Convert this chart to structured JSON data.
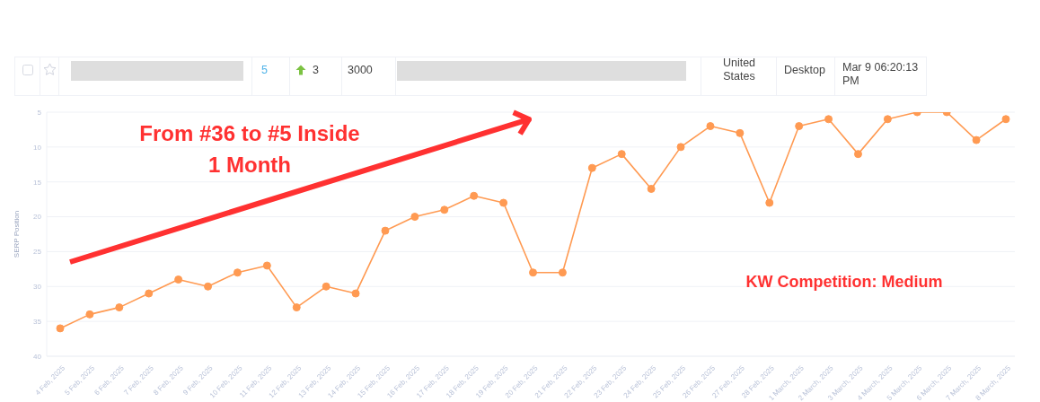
{
  "chart_data": {
    "type": "line",
    "ylabel": "SERP Position",
    "categories": [
      "4 Feb, 2025",
      "5 Feb, 2025",
      "6 Feb, 2025",
      "7 Feb, 2025",
      "8 Feb, 2025",
      "9 Feb, 2025",
      "10 Feb, 2025",
      "11 Feb, 2025",
      "12 Feb, 2025",
      "13 Feb, 2025",
      "14 Feb, 2025",
      "15 Feb, 2025",
      "16 Feb, 2025",
      "17 Feb, 2025",
      "18 Feb, 2025",
      "19 Feb, 2025",
      "20 Feb, 2025",
      "21 Feb, 2025",
      "22 Feb, 2025",
      "23 Feb, 2025",
      "24 Feb, 2025",
      "25 Feb, 2025",
      "26 Feb, 2025",
      "27 Feb, 2025",
      "28 Feb, 2025",
      "1 March, 2025",
      "2 March, 2025",
      "3 March, 2025",
      "4 March, 2025",
      "5 March, 2025",
      "6 March, 2025",
      "7 March, 2025",
      "8 March, 2025"
    ],
    "series": [
      {
        "color": "#ff9a52",
        "values": [
          36,
          34,
          33,
          31,
          29,
          30,
          28,
          27,
          33,
          30,
          31,
          22,
          20,
          19,
          17,
          18,
          28,
          28,
          13,
          11,
          16,
          10,
          7,
          8,
          18,
          7,
          6,
          11,
          6,
          5,
          5,
          9,
          6
        ]
      }
    ],
    "ylim": [
      40,
      5
    ],
    "yticks": [
      5,
      10,
      15,
      20,
      25,
      30,
      35,
      40
    ],
    "grid": "y",
    "marker": "circle",
    "line_style": "solid",
    "annotations": [
      "From #36 to #5 Inside\n1 Month",
      "KW Competition: Medium",
      "5",
      "3",
      "3000",
      "United States",
      "Desktop",
      "Mar 9 06:20:13 PM"
    ]
  }
}
